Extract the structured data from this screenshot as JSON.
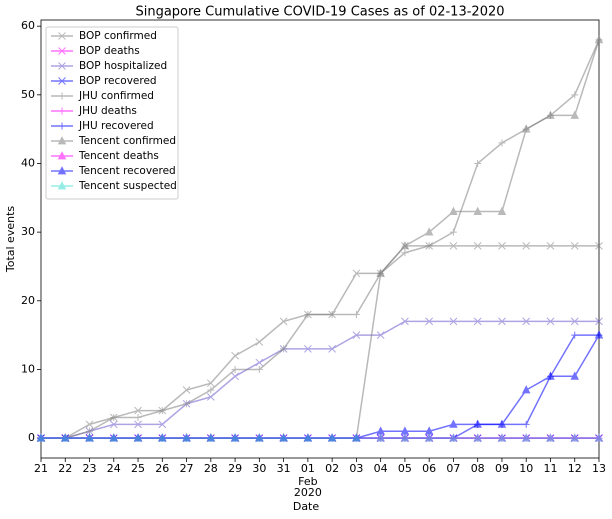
{
  "chart_data": {
    "type": "line",
    "title": "Singapore Cumulative COVID-19 Cases as of 02-13-2020",
    "x_label": "Date",
    "y_label": "Total events",
    "x_month": "Feb",
    "x_year": "2020",
    "categories": [
      "21",
      "22",
      "23",
      "24",
      "25",
      "26",
      "27",
      "28",
      "29",
      "30",
      "31",
      "01",
      "02",
      "03",
      "04",
      "05",
      "06",
      "07",
      "08",
      "09",
      "10",
      "11",
      "12",
      "13"
    ],
    "ylim": [
      -2.9,
      60.9
    ],
    "yticks": [
      0,
      10,
      20,
      30,
      40,
      50,
      60
    ],
    "legend": "upper left",
    "series": [
      {
        "name": "BOP confirmed",
        "color": "#808080",
        "marker": "x",
        "values": [
          0,
          0,
          2,
          3,
          4,
          4,
          7,
          8,
          12,
          14,
          17,
          18,
          18,
          24,
          24,
          28,
          28,
          28,
          28,
          28,
          28,
          28,
          28,
          28
        ]
      },
      {
        "name": "BOP deaths",
        "color": "#ff00ff",
        "marker": "x",
        "values": [
          0,
          0,
          0,
          0,
          0,
          0,
          0,
          0,
          0,
          0,
          0,
          0,
          0,
          0,
          0,
          0,
          0,
          0,
          0,
          0,
          0,
          0,
          0,
          0
        ]
      },
      {
        "name": "BOP hospitalized",
        "color": "#6a5acd",
        "marker": "x",
        "values": [
          0,
          0,
          1,
          2,
          2,
          2,
          5,
          6,
          9,
          11,
          13,
          13,
          13,
          15,
          15,
          17,
          17,
          17,
          17,
          17,
          17,
          17,
          17,
          17
        ]
      },
      {
        "name": "BOP recovered",
        "color": "#0000ff",
        "marker": "x",
        "values": [
          0,
          0,
          0,
          0,
          0,
          0,
          0,
          0,
          0,
          0,
          0,
          0,
          0,
          0,
          0,
          0,
          0,
          0,
          0,
          0,
          0,
          0,
          0,
          0
        ]
      },
      {
        "name": "JHU confirmed",
        "color": "#808080",
        "marker": "+",
        "values": [
          0,
          0,
          1,
          3,
          3,
          4,
          5,
          7,
          10,
          10,
          13,
          18,
          18,
          18,
          24,
          27,
          28,
          30,
          40,
          43,
          45,
          47,
          50,
          58
        ]
      },
      {
        "name": "JHU deaths",
        "color": "#ff00ff",
        "marker": "+",
        "values": [
          0,
          0,
          0,
          0,
          0,
          0,
          0,
          0,
          0,
          0,
          0,
          0,
          0,
          0,
          0,
          0,
          0,
          0,
          0,
          0,
          0,
          0,
          0,
          0
        ]
      },
      {
        "name": "JHU recovered",
        "color": "#0000ff",
        "marker": "+",
        "values": [
          0,
          0,
          0,
          0,
          0,
          0,
          0,
          0,
          0,
          0,
          0,
          0,
          0,
          0,
          0,
          0,
          0,
          0,
          2,
          2,
          2,
          9,
          15,
          15
        ]
      },
      {
        "name": "Tencent confirmed",
        "color": "#808080",
        "marker": "^",
        "values": [
          0,
          0,
          0,
          0,
          0,
          0,
          0,
          0,
          0,
          0,
          0,
          0,
          0,
          0,
          24,
          28,
          30,
          33,
          33,
          33,
          45,
          47,
          47,
          58
        ]
      },
      {
        "name": "Tencent deaths",
        "color": "#ff00ff",
        "marker": "^",
        "values": [
          0,
          0,
          0,
          0,
          0,
          0,
          0,
          0,
          0,
          0,
          0,
          0,
          0,
          0,
          0,
          0,
          0,
          0,
          0,
          0,
          0,
          0,
          0,
          0
        ]
      },
      {
        "name": "Tencent recovered",
        "color": "#0000ff",
        "marker": "^",
        "values": [
          0,
          0,
          0,
          0,
          0,
          0,
          0,
          0,
          0,
          0,
          0,
          0,
          0,
          0,
          1,
          1,
          1,
          2,
          2,
          2,
          7,
          9,
          9,
          15
        ]
      },
      {
        "name": "Tencent suspected",
        "color": "#40e0d0",
        "marker": "^",
        "values": [
          0,
          0,
          0,
          0,
          0,
          0,
          0,
          0,
          0,
          0,
          0,
          0,
          0,
          0,
          0,
          0,
          0,
          0,
          0,
          0,
          0,
          0,
          0,
          0
        ]
      }
    ]
  }
}
